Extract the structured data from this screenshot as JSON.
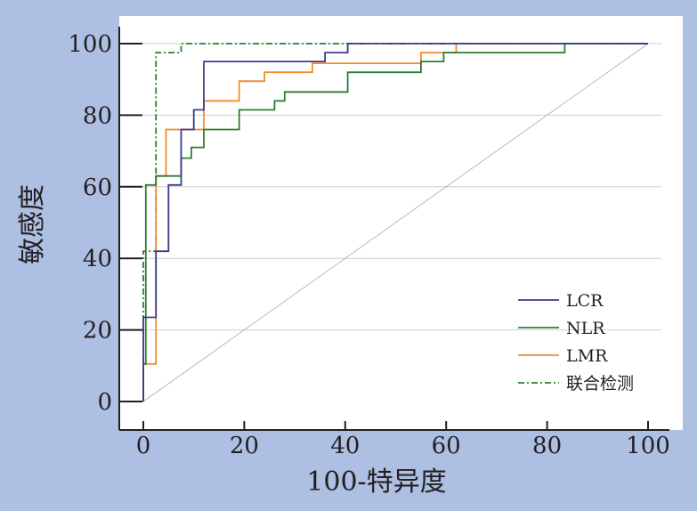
{
  "chart_data": {
    "type": "line",
    "xlabel": "100-特异度",
    "ylabel": "敏感度",
    "xlim": [
      0,
      100
    ],
    "ylim": [
      0,
      100
    ],
    "x_ticks": [
      0,
      20,
      40,
      60,
      80,
      100
    ],
    "y_ticks": [
      0,
      20,
      40,
      60,
      80,
      100
    ],
    "grid": "horizontal",
    "legend_position": "bottom-right",
    "reference_line": {
      "x": [
        0,
        100
      ],
      "y": [
        0,
        100
      ],
      "color": "#aaaaaa"
    },
    "series": [
      {
        "name": "LCR",
        "color": "#3b3b8f",
        "dash": "solid",
        "x": [
          0,
          0,
          2.5,
          2.5,
          5,
          5,
          7.5,
          7.5,
          10,
          10,
          12,
          12,
          36,
          36,
          40.5,
          40.5,
          100
        ],
        "y": [
          0,
          23.5,
          23.5,
          42,
          42,
          60.5,
          60.5,
          76,
          76,
          81.5,
          81.5,
          95,
          95,
          97.5,
          97.5,
          100,
          100
        ]
      },
      {
        "name": "NLR",
        "color": "#2e7d32",
        "dash": "solid",
        "x": [
          0,
          0,
          0.5,
          0.5,
          2.5,
          2.5,
          7.5,
          7.5,
          9.5,
          9.5,
          12,
          12,
          19,
          19,
          26,
          26,
          28,
          28,
          40.5,
          40.5,
          55,
          55,
          59.5,
          59.5,
          83.5,
          83.5,
          100
        ],
        "y": [
          0,
          10.5,
          10.5,
          60.5,
          60.5,
          63,
          63,
          68,
          68,
          71,
          71,
          76,
          76,
          81.5,
          81.5,
          84,
          84,
          86.5,
          86.5,
          92,
          92,
          95,
          95,
          97.5,
          97.5,
          100,
          100
        ]
      },
      {
        "name": "LMR",
        "color": "#f28c28",
        "dash": "solid",
        "x": [
          0,
          0,
          2.5,
          2.5,
          4.5,
          4.5,
          12,
          12,
          19,
          19,
          24,
          24,
          33.5,
          33.5,
          55,
          55,
          62,
          62,
          100
        ],
        "y": [
          0,
          10.5,
          10.5,
          63,
          63,
          76,
          76,
          84,
          84,
          89.5,
          89.5,
          92,
          92,
          94.5,
          94.5,
          97.5,
          97.5,
          100,
          100
        ]
      },
      {
        "name": "联合检测",
        "color": "#2e7d32",
        "dash": "dashdot",
        "x": [
          0,
          0,
          2.5,
          2.5,
          7.5,
          7.5,
          100
        ],
        "y": [
          0,
          42,
          42,
          97.5,
          97.5,
          100,
          100
        ]
      }
    ]
  }
}
